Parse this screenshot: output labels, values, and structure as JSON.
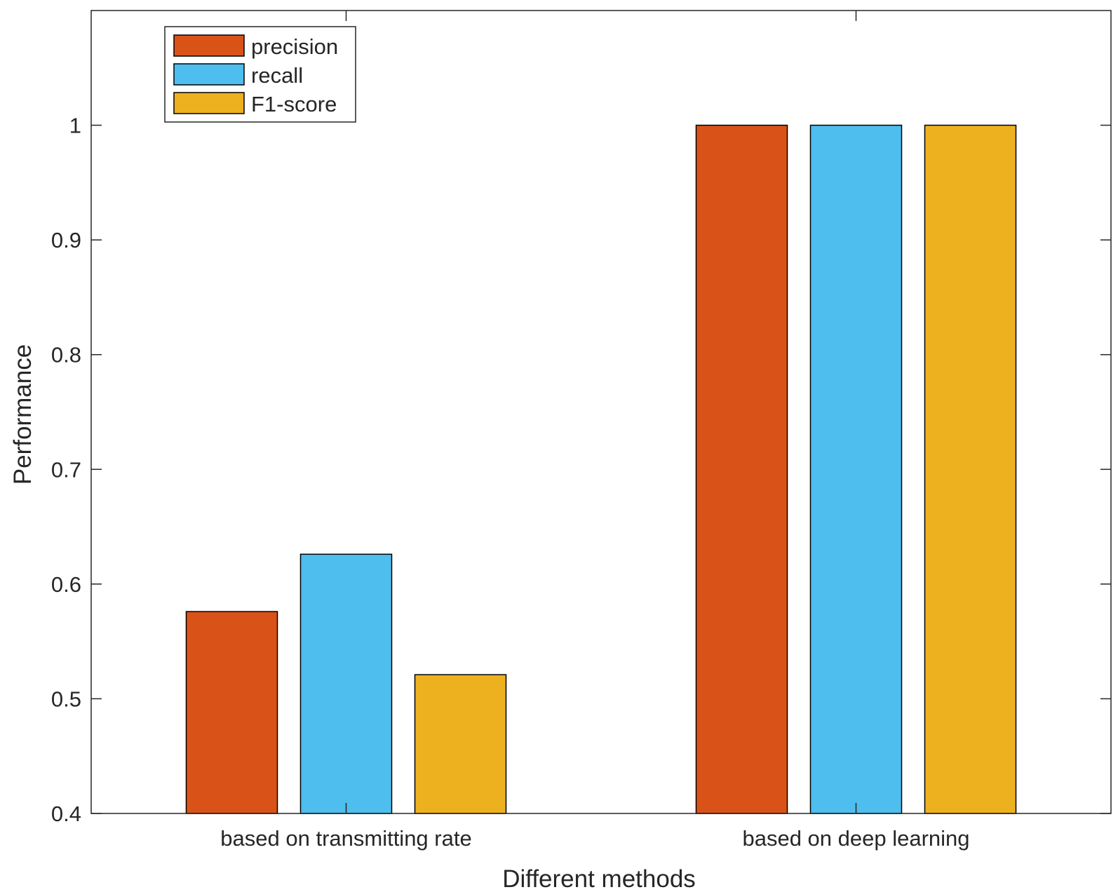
{
  "chart_data": {
    "type": "bar",
    "title": "",
    "xlabel": "Different methods",
    "ylabel": "Performance",
    "categories": [
      "based on transmitting rate",
      "based on deep learning"
    ],
    "series": [
      {
        "name": "precision",
        "color": "#D95319",
        "values": [
          0.576,
          1.0
        ]
      },
      {
        "name": "recall",
        "color": "#4DBEEE",
        "values": [
          0.626,
          1.0
        ]
      },
      {
        "name": "F1-score",
        "color": "#EDB120",
        "values": [
          0.521,
          1.0
        ]
      }
    ],
    "ylim": [
      0.4,
      1.1
    ],
    "yticks": [
      0.4,
      0.5,
      0.6,
      0.7,
      0.8,
      0.9,
      1
    ],
    "ytick_labels": [
      "0.4",
      "0.5",
      "0.6",
      "0.7",
      "0.8",
      "0.9",
      "1"
    ],
    "grid": false,
    "legend_position": "top-left"
  }
}
